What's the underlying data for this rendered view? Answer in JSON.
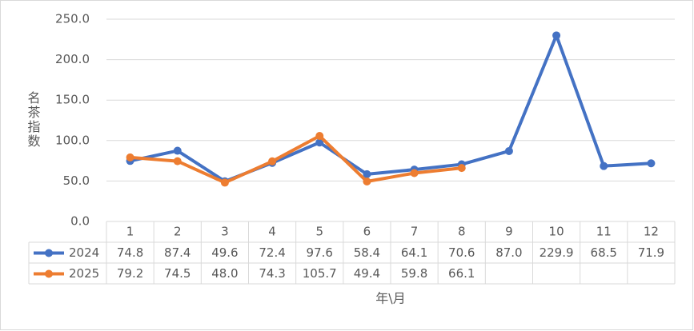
{
  "chart_data": {
    "type": "line",
    "ylabel": "名茶指数",
    "xlabel": "年\\月",
    "categories": [
      "1",
      "2",
      "3",
      "4",
      "5",
      "6",
      "7",
      "8",
      "9",
      "10",
      "11",
      "12"
    ],
    "series": [
      {
        "name": "2024",
        "color": "#4472c4",
        "values": [
          74.8,
          87.4,
          49.6,
          72.4,
          97.6,
          58.4,
          64.1,
          70.6,
          87.0,
          229.9,
          68.5,
          71.9
        ],
        "value_labels": [
          "74.8",
          "87.4",
          "49.6",
          "72.4",
          "97.6",
          "58.4",
          "64.1",
          "70.6",
          "87.0",
          "229.9",
          "68.5",
          "71.9"
        ]
      },
      {
        "name": "2025",
        "color": "#ed7d31",
        "values": [
          79.2,
          74.5,
          48.0,
          74.3,
          105.7,
          49.4,
          59.8,
          66.1,
          null,
          null,
          null,
          null
        ],
        "value_labels": [
          "79.2",
          "74.5",
          "48.0",
          "74.3",
          "105.7",
          "49.4",
          "59.8",
          "66.1",
          null,
          null,
          null,
          null
        ]
      }
    ],
    "ylim": [
      0,
      250
    ],
    "yticks": [
      {
        "value": 0,
        "label": "0.0"
      },
      {
        "value": 50,
        "label": "50.0"
      },
      {
        "value": 100,
        "label": "100.0"
      },
      {
        "value": 150,
        "label": "150.0"
      },
      {
        "value": 200,
        "label": "200.0"
      },
      {
        "value": 250,
        "label": "250.0"
      }
    ],
    "grid": true
  }
}
